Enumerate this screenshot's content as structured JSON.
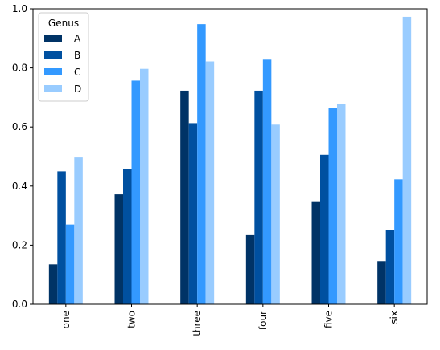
{
  "chart_data": {
    "type": "bar",
    "categories": [
      "one",
      "two",
      "three",
      "four",
      "five",
      "six"
    ],
    "series": [
      {
        "name": "A",
        "color": "#003366",
        "values": [
          0.135,
          0.372,
          0.723,
          0.234,
          0.346,
          0.146
        ]
      },
      {
        "name": "B",
        "color": "#0050a0",
        "values": [
          0.45,
          0.458,
          0.613,
          0.723,
          0.506,
          0.25
        ]
      },
      {
        "name": "C",
        "color": "#3399ff",
        "values": [
          0.27,
          0.757,
          0.948,
          0.828,
          0.663,
          0.423
        ]
      },
      {
        "name": "D",
        "color": "#99ccff",
        "values": [
          0.497,
          0.797,
          0.822,
          0.608,
          0.677,
          0.973
        ]
      }
    ],
    "title": "",
    "xlabel": "",
    "ylabel": "",
    "ylim": [
      0.0,
      1.0
    ],
    "yticks": [
      "0.0",
      "0.2",
      "0.4",
      "0.6",
      "0.8",
      "1.0"
    ],
    "ytick_values": [
      0.0,
      0.2,
      0.4,
      0.6,
      0.8,
      1.0
    ],
    "grid": false,
    "legend": {
      "title": "Genus",
      "placement": "top-left"
    }
  }
}
